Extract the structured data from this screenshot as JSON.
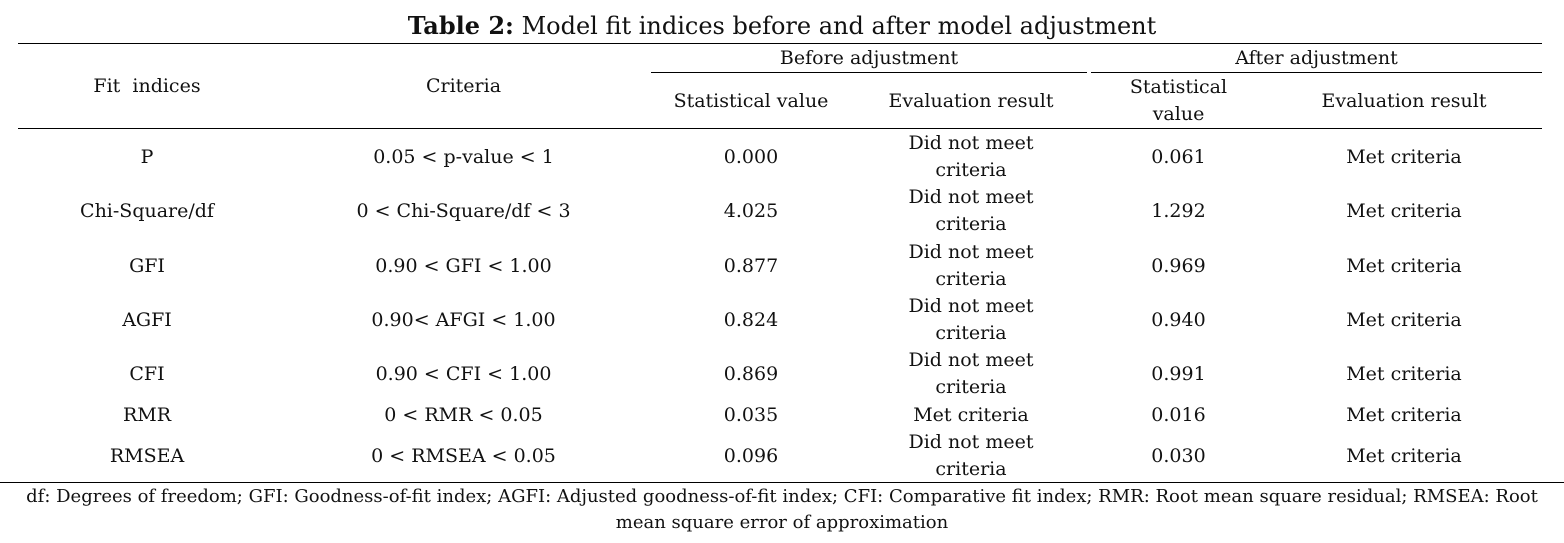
{
  "caption": {
    "label": "Table 2:",
    "title": "Model fit indices before and after model adjustment"
  },
  "header": {
    "fit_indices": "Fit  indices",
    "criteria": "Criteria",
    "before_group": "Before adjustment",
    "after_group": "After adjustment",
    "before_stat": "Statistical value",
    "before_eval": "Evaluation result",
    "after_stat_line1": "Statistical",
    "after_stat_line2": "value",
    "after_eval": "Evaluation result"
  },
  "rows": [
    {
      "index": "P",
      "criteria": "0.05 < p-value < 1",
      "before_value": "0.000",
      "before_eval": "Did not meet criteria",
      "after_value": "0.061",
      "after_eval": "Met criteria"
    },
    {
      "index": "Chi-Square/df",
      "criteria": "0 < Chi-Square/df < 3",
      "before_value": "4.025",
      "before_eval": "Did not meet criteria",
      "after_value": "1.292",
      "after_eval": "Met criteria"
    },
    {
      "index": "GFI",
      "criteria": "0.90 < GFI < 1.00",
      "before_value": "0.877",
      "before_eval": "Did not meet criteria",
      "after_value": "0.969",
      "after_eval": "Met criteria"
    },
    {
      "index": "AGFI",
      "criteria": "0.90< AFGI < 1.00",
      "before_value": "0.824",
      "before_eval": "Did not meet criteria",
      "after_value": "0.940",
      "after_eval": "Met criteria"
    },
    {
      "index": "CFI",
      "criteria": "0.90 < CFI < 1.00",
      "before_value": "0.869",
      "before_eval": "Did not meet criteria",
      "after_value": "0.991",
      "after_eval": "Met criteria"
    },
    {
      "index": "RMR",
      "criteria": "0 < RMR < 0.05",
      "before_value": "0.035",
      "before_eval": "Met criteria",
      "after_value": "0.016",
      "after_eval": "Met criteria"
    },
    {
      "index": "RMSEA",
      "criteria": "0 < RMSEA < 0.05",
      "before_value": "0.096",
      "before_eval": "Did not meet criteria",
      "after_value": "0.030",
      "after_eval": "Met criteria"
    }
  ],
  "footnote": "df: Degrees of freedom; GFI: Goodness-of-fit index; AGFI: Adjusted goodness-of-fit index; CFI: Comparative fit index; RMR: Root mean square residual; RMSEA: Root mean square error of approximation"
}
